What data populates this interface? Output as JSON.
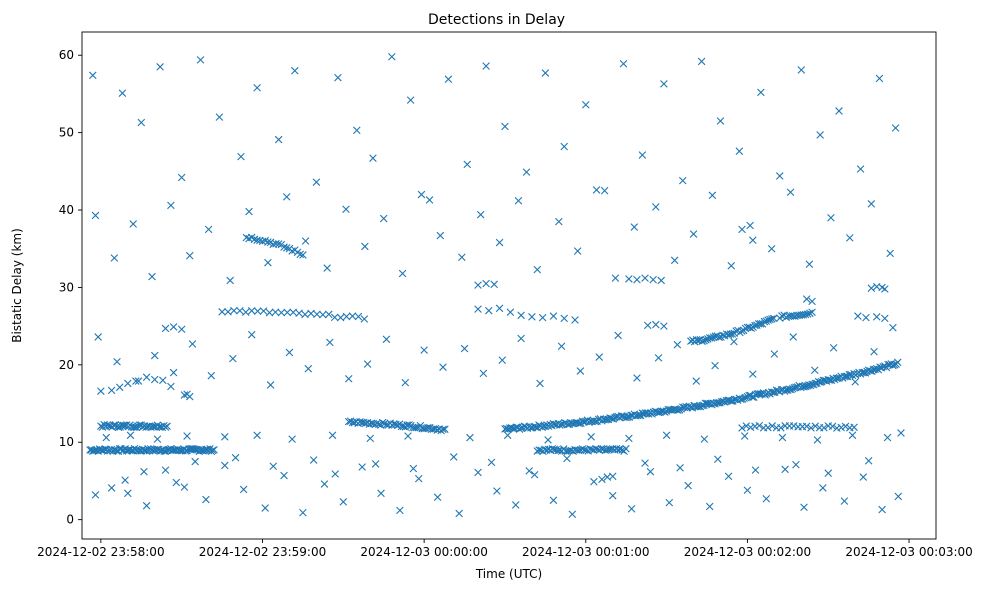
{
  "chart_data": {
    "type": "scatter",
    "title": "Detections in Delay",
    "xlabel": "Time (UTC)",
    "ylabel": "Bistatic Delay (km)",
    "marker": "x",
    "color": "#1f77b4",
    "x_unit": "seconds after 2024-12-02 23:58:00 UTC",
    "xlim": [
      -7,
      310
    ],
    "ylim": [
      -2.5,
      63
    ],
    "xticks": [
      {
        "value": 0,
        "label": "2024-12-02 23:58:00"
      },
      {
        "value": 60,
        "label": "2024-12-02 23:59:00"
      },
      {
        "value": 120,
        "label": "2024-12-03 00:00:00"
      },
      {
        "value": 180,
        "label": "2024-12-03 00:01:00"
      },
      {
        "value": 240,
        "label": "2024-12-03 00:02:00"
      },
      {
        "value": 300,
        "label": "2024-12-03 00:03:00"
      }
    ],
    "yticks": [
      {
        "value": 0,
        "label": "0"
      },
      {
        "value": 10,
        "label": "10"
      },
      {
        "value": 20,
        "label": "20"
      },
      {
        "value": 30,
        "label": "30"
      },
      {
        "value": 40,
        "label": "40"
      },
      {
        "value": 50,
        "label": "50"
      },
      {
        "value": 60,
        "label": "60"
      }
    ],
    "tracks": [
      {
        "name": "track-9",
        "x_start": -4,
        "x_end": 42,
        "y_start": 9.0,
        "y_end": 9.0,
        "step": 0.5
      },
      {
        "name": "track-12a",
        "x_start": 0,
        "x_end": 25,
        "y_start": 12.1,
        "y_end": 12.1,
        "step": 0.6
      },
      {
        "name": "track-9b",
        "x_start": 162,
        "x_end": 195,
        "y_start": 9.0,
        "y_end": 9.0,
        "step": 0.7
      },
      {
        "name": "track-main",
        "x_start": 150,
        "x_end": 296,
        "y_start": 11.7,
        "y_end": 20.2,
        "step": 0.6
      },
      {
        "name": "track-pre",
        "x_start": 92,
        "x_end": 128,
        "y_start": 12.6,
        "y_end": 11.6,
        "step": 0.7
      },
      {
        "name": "track-upper",
        "x_start": 219,
        "x_end": 250,
        "y_start": 23.0,
        "y_end": 26.0,
        "step": 0.7
      },
      {
        "name": "track-26",
        "x_start": 252,
        "x_end": 264,
        "y_start": 26.2,
        "y_end": 26.8,
        "step": 0.8
      },
      {
        "name": "track-35",
        "x_start": 54,
        "x_end": 75,
        "y_start": 36.5,
        "y_end": 34.2,
        "step": 1.0
      },
      {
        "name": "track-27",
        "x_start": 45,
        "x_end": 98,
        "y_start": 27.0,
        "y_end": 26.0,
        "step": 2.2
      },
      {
        "name": "track-12b",
        "x_start": 238,
        "x_end": 280,
        "y_start": 12.0,
        "y_end": 12.0,
        "step": 1.6
      }
    ],
    "points": [
      [
        -3,
        57.4
      ],
      [
        8,
        55.1
      ],
      [
        15,
        51.3
      ],
      [
        22,
        58.5
      ],
      [
        30,
        44.2
      ],
      [
        37,
        59.4
      ],
      [
        44,
        52.0
      ],
      [
        52,
        46.9
      ],
      [
        58,
        55.8
      ],
      [
        66,
        49.1
      ],
      [
        72,
        58.0
      ],
      [
        80,
        43.6
      ],
      [
        88,
        57.1
      ],
      [
        95,
        50.3
      ],
      [
        101,
        46.7
      ],
      [
        108,
        59.8
      ],
      [
        115,
        54.2
      ],
      [
        122,
        41.3
      ],
      [
        129,
        56.9
      ],
      [
        136,
        45.9
      ],
      [
        143,
        58.6
      ],
      [
        150,
        50.8
      ],
      [
        158,
        44.9
      ],
      [
        165,
        57.7
      ],
      [
        172,
        48.2
      ],
      [
        180,
        53.6
      ],
      [
        187,
        42.5
      ],
      [
        194,
        58.9
      ],
      [
        201,
        47.1
      ],
      [
        209,
        56.3
      ],
      [
        216,
        43.8
      ],
      [
        223,
        59.2
      ],
      [
        230,
        51.5
      ],
      [
        237,
        47.6
      ],
      [
        245,
        55.2
      ],
      [
        252,
        44.4
      ],
      [
        260,
        58.1
      ],
      [
        267,
        49.7
      ],
      [
        274,
        52.8
      ],
      [
        282,
        45.3
      ],
      [
        289,
        57.0
      ],
      [
        295,
        50.6
      ],
      [
        -2,
        39.3
      ],
      [
        5,
        33.8
      ],
      [
        12,
        38.2
      ],
      [
        19,
        31.4
      ],
      [
        26,
        40.6
      ],
      [
        33,
        34.1
      ],
      [
        40,
        37.5
      ],
      [
        48,
        30.9
      ],
      [
        55,
        39.8
      ],
      [
        62,
        33.2
      ],
      [
        69,
        41.7
      ],
      [
        76,
        36.0
      ],
      [
        84,
        32.5
      ],
      [
        91,
        40.1
      ],
      [
        98,
        35.3
      ],
      [
        105,
        38.9
      ],
      [
        112,
        31.8
      ],
      [
        119,
        42.0
      ],
      [
        126,
        36.7
      ],
      [
        134,
        33.9
      ],
      [
        141,
        39.4
      ],
      [
        148,
        35.8
      ],
      [
        155,
        41.2
      ],
      [
        162,
        32.3
      ],
      [
        170,
        38.5
      ],
      [
        177,
        34.7
      ],
      [
        184,
        42.6
      ],
      [
        191,
        31.2
      ],
      [
        198,
        37.8
      ],
      [
        206,
        40.4
      ],
      [
        213,
        33.5
      ],
      [
        220,
        36.9
      ],
      [
        227,
        41.9
      ],
      [
        234,
        32.8
      ],
      [
        241,
        38.0
      ],
      [
        249,
        35.0
      ],
      [
        256,
        42.3
      ],
      [
        263,
        33.0
      ],
      [
        271,
        39.0
      ],
      [
        278,
        36.4
      ],
      [
        286,
        40.8
      ],
      [
        293,
        34.4
      ],
      [
        -1,
        23.6
      ],
      [
        6,
        20.4
      ],
      [
        13,
        17.9
      ],
      [
        20,
        21.2
      ],
      [
        27,
        19.0
      ],
      [
        34,
        22.7
      ],
      [
        41,
        18.6
      ],
      [
        49,
        20.8
      ],
      [
        56,
        23.9
      ],
      [
        63,
        17.4
      ],
      [
        70,
        21.6
      ],
      [
        77,
        19.5
      ],
      [
        85,
        22.9
      ],
      [
        92,
        18.2
      ],
      [
        99,
        20.1
      ],
      [
        106,
        23.3
      ],
      [
        113,
        17.7
      ],
      [
        120,
        21.9
      ],
      [
        127,
        19.7
      ],
      [
        135,
        22.1
      ],
      [
        142,
        18.9
      ],
      [
        149,
        20.6
      ],
      [
        156,
        23.4
      ],
      [
        163,
        17.6
      ],
      [
        171,
        22.4
      ],
      [
        178,
        19.2
      ],
      [
        185,
        21.0
      ],
      [
        192,
        23.8
      ],
      [
        199,
        18.3
      ],
      [
        207,
        20.9
      ],
      [
        214,
        22.6
      ],
      [
        221,
        17.9
      ],
      [
        228,
        19.9
      ],
      [
        235,
        23.0
      ],
      [
        242,
        18.8
      ],
      [
        250,
        21.4
      ],
      [
        257,
        23.6
      ],
      [
        265,
        19.3
      ],
      [
        272,
        22.2
      ],
      [
        280,
        17.8
      ],
      [
        287,
        21.7
      ],
      [
        294,
        24.8
      ],
      [
        0,
        16.6
      ],
      [
        4,
        16.7
      ],
      [
        7,
        17.1
      ],
      [
        10,
        17.6
      ],
      [
        14,
        17.9
      ],
      [
        17,
        18.4
      ],
      [
        20,
        18.1
      ],
      [
        23,
        18.0
      ],
      [
        26,
        17.2
      ],
      [
        -2,
        3.2
      ],
      [
        9,
        5.1
      ],
      [
        17,
        1.8
      ],
      [
        24,
        6.4
      ],
      [
        31,
        4.2
      ],
      [
        39,
        2.6
      ],
      [
        46,
        7.0
      ],
      [
        53,
        3.9
      ],
      [
        61,
        1.5
      ],
      [
        68,
        5.7
      ],
      [
        75,
        0.9
      ],
      [
        83,
        4.6
      ],
      [
        90,
        2.3
      ],
      [
        97,
        6.8
      ],
      [
        104,
        3.4
      ],
      [
        111,
        1.2
      ],
      [
        118,
        5.3
      ],
      [
        125,
        2.9
      ],
      [
        133,
        0.8
      ],
      [
        140,
        6.1
      ],
      [
        147,
        3.7
      ],
      [
        154,
        1.9
      ],
      [
        161,
        5.8
      ],
      [
        168,
        2.5
      ],
      [
        175,
        0.7
      ],
      [
        183,
        4.9
      ],
      [
        190,
        3.1
      ],
      [
        197,
        1.4
      ],
      [
        204,
        6.2
      ],
      [
        211,
        2.2
      ],
      [
        218,
        4.4
      ],
      [
        226,
        1.7
      ],
      [
        233,
        5.6
      ],
      [
        240,
        3.8
      ],
      [
        247,
        2.7
      ],
      [
        254,
        6.5
      ],
      [
        261,
        1.6
      ],
      [
        268,
        4.1
      ],
      [
        276,
        2.4
      ],
      [
        283,
        5.5
      ],
      [
        290,
        1.3
      ],
      [
        296,
        3.0
      ],
      [
        4,
        4.1
      ],
      [
        10,
        3.4
      ],
      [
        16,
        6.2
      ],
      [
        28,
        4.8
      ],
      [
        35,
        7.5
      ],
      [
        50,
        8.0
      ],
      [
        64,
        6.9
      ],
      [
        79,
        7.7
      ],
      [
        87,
        5.9
      ],
      [
        102,
        7.2
      ],
      [
        116,
        6.6
      ],
      [
        131,
        8.1
      ],
      [
        145,
        7.4
      ],
      [
        159,
        6.3
      ],
      [
        173,
        7.9
      ],
      [
        186,
        5.2
      ],
      [
        188,
        5.5
      ],
      [
        190,
        5.6
      ],
      [
        202,
        7.3
      ],
      [
        215,
        6.7
      ],
      [
        229,
        7.8
      ],
      [
        243,
        6.4
      ],
      [
        258,
        7.1
      ],
      [
        270,
        6.0
      ],
      [
        285,
        7.6
      ],
      [
        2,
        10.6
      ],
      [
        11,
        10.9
      ],
      [
        21,
        10.4
      ],
      [
        32,
        10.8
      ],
      [
        46,
        10.7
      ],
      [
        58,
        10.9
      ],
      [
        71,
        10.4
      ],
      [
        86,
        10.9
      ],
      [
        100,
        10.5
      ],
      [
        114,
        10.8
      ],
      [
        137,
        10.6
      ],
      [
        151,
        10.9
      ],
      [
        166,
        10.3
      ],
      [
        182,
        10.7
      ],
      [
        196,
        10.5
      ],
      [
        210,
        10.9
      ],
      [
        224,
        10.4
      ],
      [
        239,
        10.8
      ],
      [
        253,
        10.6
      ],
      [
        266,
        10.3
      ],
      [
        279,
        10.9
      ],
      [
        292,
        10.6
      ],
      [
        297,
        11.2
      ],
      [
        24,
        24.7
      ],
      [
        27,
        24.9
      ],
      [
        30,
        24.6
      ],
      [
        140,
        30.3
      ],
      [
        143,
        30.5
      ],
      [
        146,
        30.4
      ],
      [
        196,
        31.1
      ],
      [
        199,
        31.0
      ],
      [
        202,
        31.2
      ],
      [
        205,
        31.0
      ],
      [
        208,
        30.9
      ],
      [
        140,
        27.2
      ],
      [
        144,
        27.0
      ],
      [
        148,
        27.3
      ],
      [
        152,
        26.8
      ],
      [
        156,
        26.4
      ],
      [
        160,
        26.2
      ],
      [
        164,
        26.1
      ],
      [
        168,
        26.3
      ],
      [
        172,
        26.0
      ],
      [
        176,
        25.8
      ],
      [
        203,
        25.1
      ],
      [
        206,
        25.2
      ],
      [
        209,
        25.0
      ],
      [
        31,
        16.1
      ],
      [
        32,
        16.2
      ],
      [
        33,
        15.9
      ],
      [
        286,
        29.9
      ],
      [
        288,
        30.1
      ],
      [
        290,
        30.0
      ],
      [
        291,
        29.8
      ],
      [
        262,
        28.5
      ],
      [
        264,
        28.2
      ],
      [
        238,
        37.5
      ],
      [
        242,
        36.1
      ],
      [
        281,
        26.3
      ],
      [
        284,
        26.1
      ],
      [
        288,
        26.2
      ],
      [
        291,
        26.0
      ]
    ]
  }
}
